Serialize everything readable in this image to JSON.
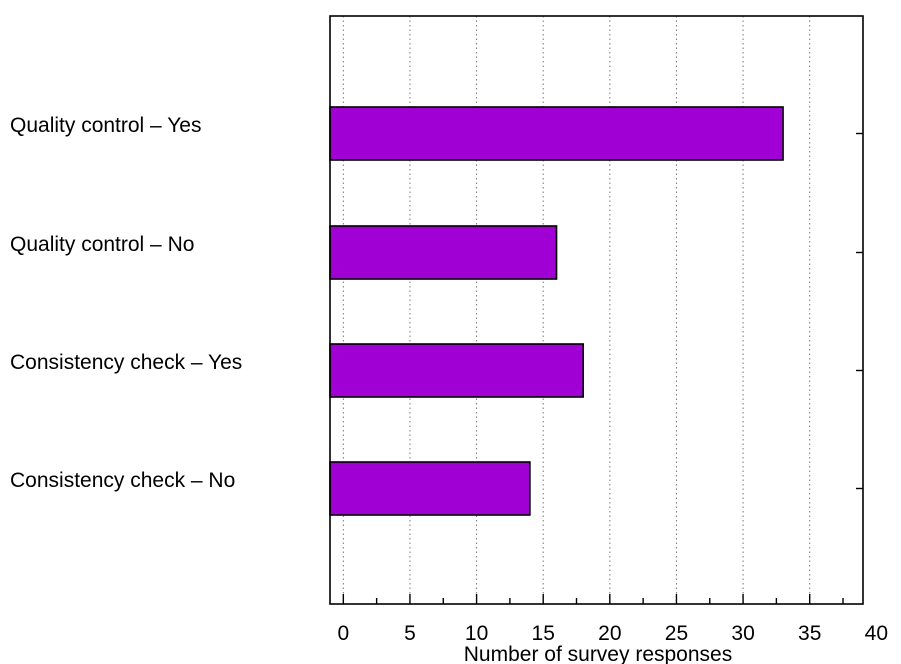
{
  "chart_data": {
    "type": "bar",
    "orientation": "horizontal",
    "categories": [
      "Quality control – Yes",
      "Quality control – No",
      "Consistency check – Yes",
      "Consistency check – No"
    ],
    "values": [
      33,
      16,
      18,
      14
    ],
    "title": "",
    "xlabel": "Number of survey responses",
    "ylabel": "",
    "xlim": [
      -1,
      39
    ],
    "x_ticks": [
      0,
      5,
      10,
      15,
      20,
      25,
      30,
      35,
      40
    ],
    "x_minor_step": 2.5,
    "grid": "vertical dotted at major ticks",
    "bar_color": "#a000d4",
    "edge_color": "#000000"
  }
}
